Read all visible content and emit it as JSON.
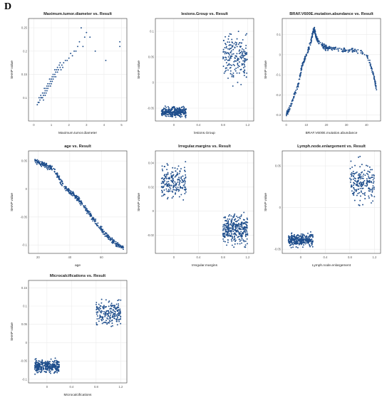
{
  "panel_label": "D",
  "colors": {
    "point": "#1f4e8c",
    "grid": "#ebebeb",
    "frame": "#333333",
    "text": "#222222"
  },
  "chart_data": [
    {
      "type": "scatter",
      "title": "Maximum.tumor.diameter vs. Result",
      "xlabel": "Maximum.tumor.diameter",
      "ylabel": "SHAP value",
      "xlim": [
        -0.3,
        5.3
      ],
      "ylim": [
        0.05,
        0.27
      ],
      "xticks": [
        0,
        1,
        2,
        3,
        4,
        5
      ],
      "yticks": [
        0.1,
        0.15,
        0.2,
        0.25
      ],
      "grid": true,
      "points": [
        [
          0.3,
          0.09
        ],
        [
          0.3,
          0.1
        ],
        [
          0.35,
          0.095
        ],
        [
          0.4,
          0.1
        ],
        [
          0.4,
          0.105
        ],
        [
          0.45,
          0.1
        ],
        [
          0.5,
          0.11
        ],
        [
          0.5,
          0.1
        ],
        [
          0.55,
          0.105
        ],
        [
          0.6,
          0.11
        ],
        [
          0.6,
          0.12
        ],
        [
          0.65,
          0.115
        ],
        [
          0.7,
          0.11
        ],
        [
          0.7,
          0.12
        ],
        [
          0.75,
          0.125
        ],
        [
          0.8,
          0.12
        ],
        [
          0.8,
          0.13
        ],
        [
          0.85,
          0.125
        ],
        [
          0.9,
          0.13
        ],
        [
          0.9,
          0.14
        ],
        [
          0.95,
          0.135
        ],
        [
          1.0,
          0.14
        ],
        [
          1.0,
          0.13
        ],
        [
          1.05,
          0.145
        ],
        [
          1.1,
          0.14
        ],
        [
          1.1,
          0.15
        ],
        [
          1.15,
          0.145
        ],
        [
          1.2,
          0.15
        ],
        [
          1.2,
          0.16
        ],
        [
          1.25,
          0.155
        ],
        [
          1.3,
          0.16
        ],
        [
          1.35,
          0.165
        ],
        [
          1.4,
          0.16
        ],
        [
          1.45,
          0.17
        ],
        [
          1.5,
          0.165
        ],
        [
          1.5,
          0.175
        ],
        [
          1.6,
          0.17
        ],
        [
          1.7,
          0.175
        ],
        [
          1.8,
          0.18
        ],
        [
          1.9,
          0.18
        ],
        [
          2.0,
          0.185
        ],
        [
          2.2,
          0.19
        ],
        [
          2.4,
          0.2
        ],
        [
          2.5,
          0.21
        ],
        [
          2.6,
          0.22
        ],
        [
          2.7,
          0.25
        ],
        [
          2.8,
          0.21
        ],
        [
          3.0,
          0.24
        ],
        [
          3.2,
          0.23
        ],
        [
          3.5,
          0.2
        ],
        [
          4.1,
          0.18
        ],
        [
          4.9,
          0.21
        ],
        [
          4.9,
          0.22
        ],
        [
          0.2,
          0.085
        ],
        [
          0.25,
          0.09
        ],
        [
          0.55,
          0.095
        ],
        [
          0.65,
          0.105
        ],
        [
          0.75,
          0.115
        ],
        [
          0.95,
          0.125
        ],
        [
          1.05,
          0.135
        ],
        [
          1.25,
          0.145
        ],
        [
          1.35,
          0.155
        ],
        [
          1.55,
          0.16
        ],
        [
          1.65,
          0.165
        ],
        [
          2.1,
          0.195
        ],
        [
          2.3,
          0.2
        ],
        [
          2.9,
          0.23
        ]
      ]
    },
    {
      "type": "scatter",
      "title": "lesions.Group vs. Result",
      "xlabel": "lesions.Group",
      "ylabel": "SHAP value",
      "xlim": [
        -0.3,
        1.3
      ],
      "ylim": [
        -0.075,
        0.125
      ],
      "xticks": [
        0.0,
        0.4,
        0.8,
        1.2
      ],
      "yticks": [
        -0.05,
        0.0,
        0.05,
        0.1
      ],
      "grid": true,
      "clusters": [
        {
          "x_center": 0.0,
          "x_spread": 0.2,
          "y_range": [
            -0.07,
            -0.045
          ],
          "count": 320
        },
        {
          "x_center": 1.0,
          "x_spread": 0.2,
          "y_range": [
            -0.01,
            0.11
          ],
          "count": 200
        }
      ]
    },
    {
      "type": "scatter",
      "title": "BRAF.V600E.mutation.abundance vs. Result",
      "xlabel": "BRAF.V600E.mutation.abundance",
      "ylabel": "SHAP value",
      "xlim": [
        -2,
        47
      ],
      "ylim": [
        -0.33,
        0.18
      ],
      "xticks": [
        0,
        10,
        20,
        30,
        40
      ],
      "yticks": [
        -0.3,
        -0.2,
        -0.1,
        0.0,
        0.1
      ],
      "grid": true,
      "curve": [
        [
          0,
          -0.3
        ],
        [
          2,
          -0.26
        ],
        [
          4,
          -0.2
        ],
        [
          6,
          -0.15
        ],
        [
          8,
          -0.05
        ],
        [
          10,
          0.0
        ],
        [
          12,
          0.05
        ],
        [
          13,
          0.1
        ],
        [
          14,
          0.13
        ],
        [
          15,
          0.08
        ],
        [
          17,
          0.05
        ],
        [
          19,
          0.04
        ],
        [
          21,
          0.03
        ],
        [
          25,
          0.03
        ],
        [
          30,
          0.02
        ],
        [
          35,
          0.02
        ],
        [
          40,
          0.0
        ],
        [
          42,
          -0.05
        ],
        [
          44,
          -0.12
        ],
        [
          45,
          -0.18
        ]
      ],
      "count": 420
    },
    {
      "type": "scatter",
      "title": "age vs. Result",
      "xlabel": "age",
      "ylabel": "SHAP value",
      "xlim": [
        14,
        76
      ],
      "ylim": [
        -0.115,
        0.068
      ],
      "xticks": [
        20,
        40,
        60
      ],
      "yticks": [
        -0.1,
        -0.05,
        0.0,
        0.05
      ],
      "grid": true,
      "curve": [
        [
          18,
          0.05
        ],
        [
          22,
          0.045
        ],
        [
          26,
          0.04
        ],
        [
          30,
          0.035
        ],
        [
          34,
          0.015
        ],
        [
          38,
          0.0
        ],
        [
          42,
          -0.01
        ],
        [
          46,
          -0.02
        ],
        [
          50,
          -0.035
        ],
        [
          54,
          -0.05
        ],
        [
          58,
          -0.065
        ],
        [
          62,
          -0.08
        ],
        [
          66,
          -0.09
        ],
        [
          70,
          -0.1
        ],
        [
          74,
          -0.105
        ]
      ],
      "count": 420
    },
    {
      "type": "scatter",
      "title": "Irregular.margins vs. Result",
      "xlabel": "Irregular.margins",
      "ylabel": "SHAP value",
      "xlim": [
        -0.3,
        1.3
      ],
      "ylim": [
        -0.035,
        0.05
      ],
      "xticks": [
        0.0,
        0.4,
        0.8,
        1.2
      ],
      "yticks": [
        -0.02,
        0.0,
        0.02,
        0.04
      ],
      "grid": true,
      "clusters": [
        {
          "x_center": 0.0,
          "x_spread": 0.2,
          "y_range": [
            0.005,
            0.045
          ],
          "count": 200
        },
        {
          "x_center": 1.0,
          "x_spread": 0.2,
          "y_range": [
            -0.033,
            0.002
          ],
          "count": 320
        }
      ]
    },
    {
      "type": "scatter",
      "title": "Lymph.node.enlargement vs. Result",
      "xlabel": "Lymph.node.enlargement",
      "ylabel": "SHAP value",
      "xlim": [
        -0.3,
        1.3
      ],
      "ylim": [
        -0.055,
        0.068
      ],
      "xticks": [
        0.0,
        0.4,
        0.8,
        1.2
      ],
      "yticks": [
        -0.05,
        0.0,
        0.05
      ],
      "grid": true,
      "clusters": [
        {
          "x_center": 0.0,
          "x_spread": 0.2,
          "y_range": [
            -0.05,
            -0.028
          ],
          "count": 320
        },
        {
          "x_center": 1.0,
          "x_spread": 0.2,
          "y_range": [
            -0.005,
            0.065
          ],
          "count": 200
        }
      ]
    },
    {
      "type": "scatter",
      "title": "Microcalcifications vs. Result",
      "xlabel": "Microcalcifications",
      "ylabel": "SHAP value",
      "xlim": [
        -0.3,
        1.3
      ],
      "ylim": [
        -0.11,
        0.17
      ],
      "xticks": [
        0.0,
        0.4,
        0.8,
        1.2
      ],
      "yticks": [
        -0.1,
        -0.05,
        0.0,
        0.05,
        0.1,
        0.15
      ],
      "grid": true,
      "clusters": [
        {
          "x_center": 0.0,
          "x_spread": 0.2,
          "y_range": [
            -0.09,
            -0.04
          ],
          "count": 320
        },
        {
          "x_center": 1.0,
          "x_spread": 0.2,
          "y_range": [
            0.03,
            0.13
          ],
          "count": 200
        }
      ]
    }
  ]
}
